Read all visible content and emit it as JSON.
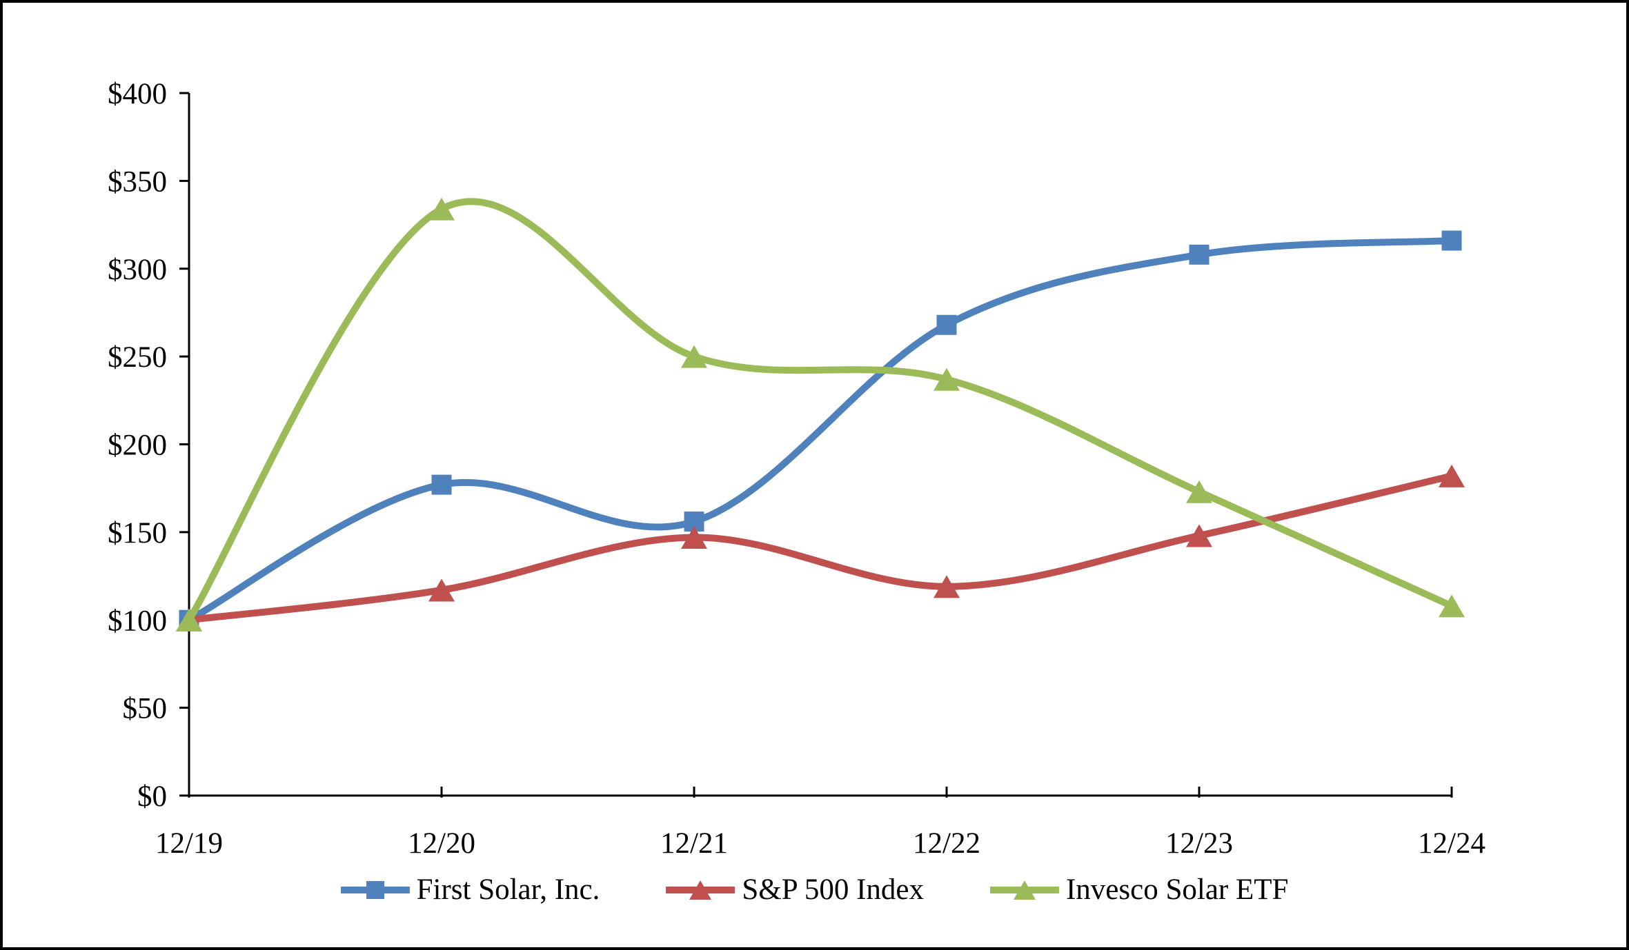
{
  "chart_data": {
    "type": "line",
    "smoothed": true,
    "title": "",
    "xlabel": "",
    "ylabel": "",
    "categories": [
      "12/19",
      "12/20",
      "12/21",
      "12/22",
      "12/23",
      "12/24"
    ],
    "series": [
      {
        "name": "First Solar, Inc.",
        "color": "#4F81BD",
        "marker": "square",
        "values": [
          100,
          177,
          156,
          268,
          308,
          316
        ]
      },
      {
        "name": "S&P 500 Index",
        "color": "#C0504D",
        "marker": "triangle",
        "values": [
          100,
          117,
          147,
          119,
          148,
          182
        ]
      },
      {
        "name": "Invesco Solar ETF",
        "color": "#9BBB59",
        "marker": "triangle",
        "values": [
          100,
          334,
          250,
          237,
          173,
          108
        ]
      }
    ],
    "ylim": [
      0,
      400
    ],
    "ytick_step": 50,
    "ytick_labels": [
      "$0",
      "$50",
      "$100",
      "$150",
      "$200",
      "$250",
      "$300",
      "$350",
      "$400"
    ],
    "grid": false,
    "legend_position": "bottom",
    "axis_color": "#000000",
    "background_color": "#ffffff",
    "frame_border_color": "#000000"
  }
}
